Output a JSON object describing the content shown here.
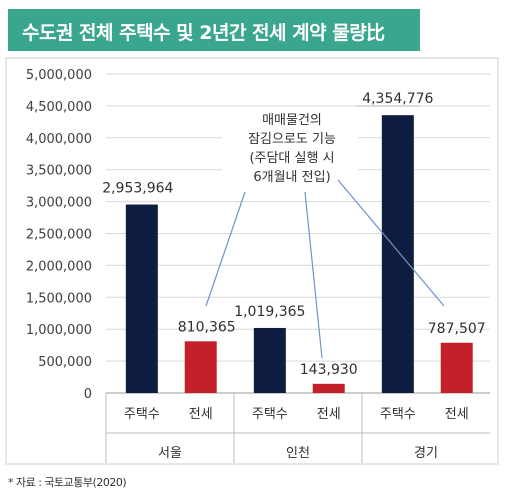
{
  "title": "수도권 전체 주택수 및 2년간 전세 계약 물량比",
  "source": "* 자료 : 국토교통부(2020)",
  "colors": {
    "title_bg": "#3aa68e",
    "housing": "#0f1e40",
    "jeonse": "#c4202a"
  },
  "callout": [
    "매매물건의",
    "잠김으로도 기능",
    "(주담대 실행 시",
    "6개월내 전입)"
  ],
  "chart_data": {
    "type": "bar",
    "ylim": [
      0,
      5000000
    ],
    "y_ticks": [
      "0",
      "500,000",
      "1,000,000",
      "1,500,000",
      "2,000,000",
      "2,500,000",
      "3,000,000",
      "3,500,000",
      "4,000,000",
      "4,500,000",
      "5,000,000"
    ],
    "groups": [
      "서울",
      "인천",
      "경기"
    ],
    "categories": [
      "주택수",
      "전세"
    ],
    "values": [
      [
        2953964,
        810365
      ],
      [
        1019365,
        143930
      ],
      [
        4354776,
        787507
      ]
    ],
    "value_labels": [
      [
        "2,953,964",
        "810,365"
      ],
      [
        "1,019,365",
        "143,930"
      ],
      [
        "4,354,776",
        "787,507"
      ]
    ],
    "grid": true
  }
}
